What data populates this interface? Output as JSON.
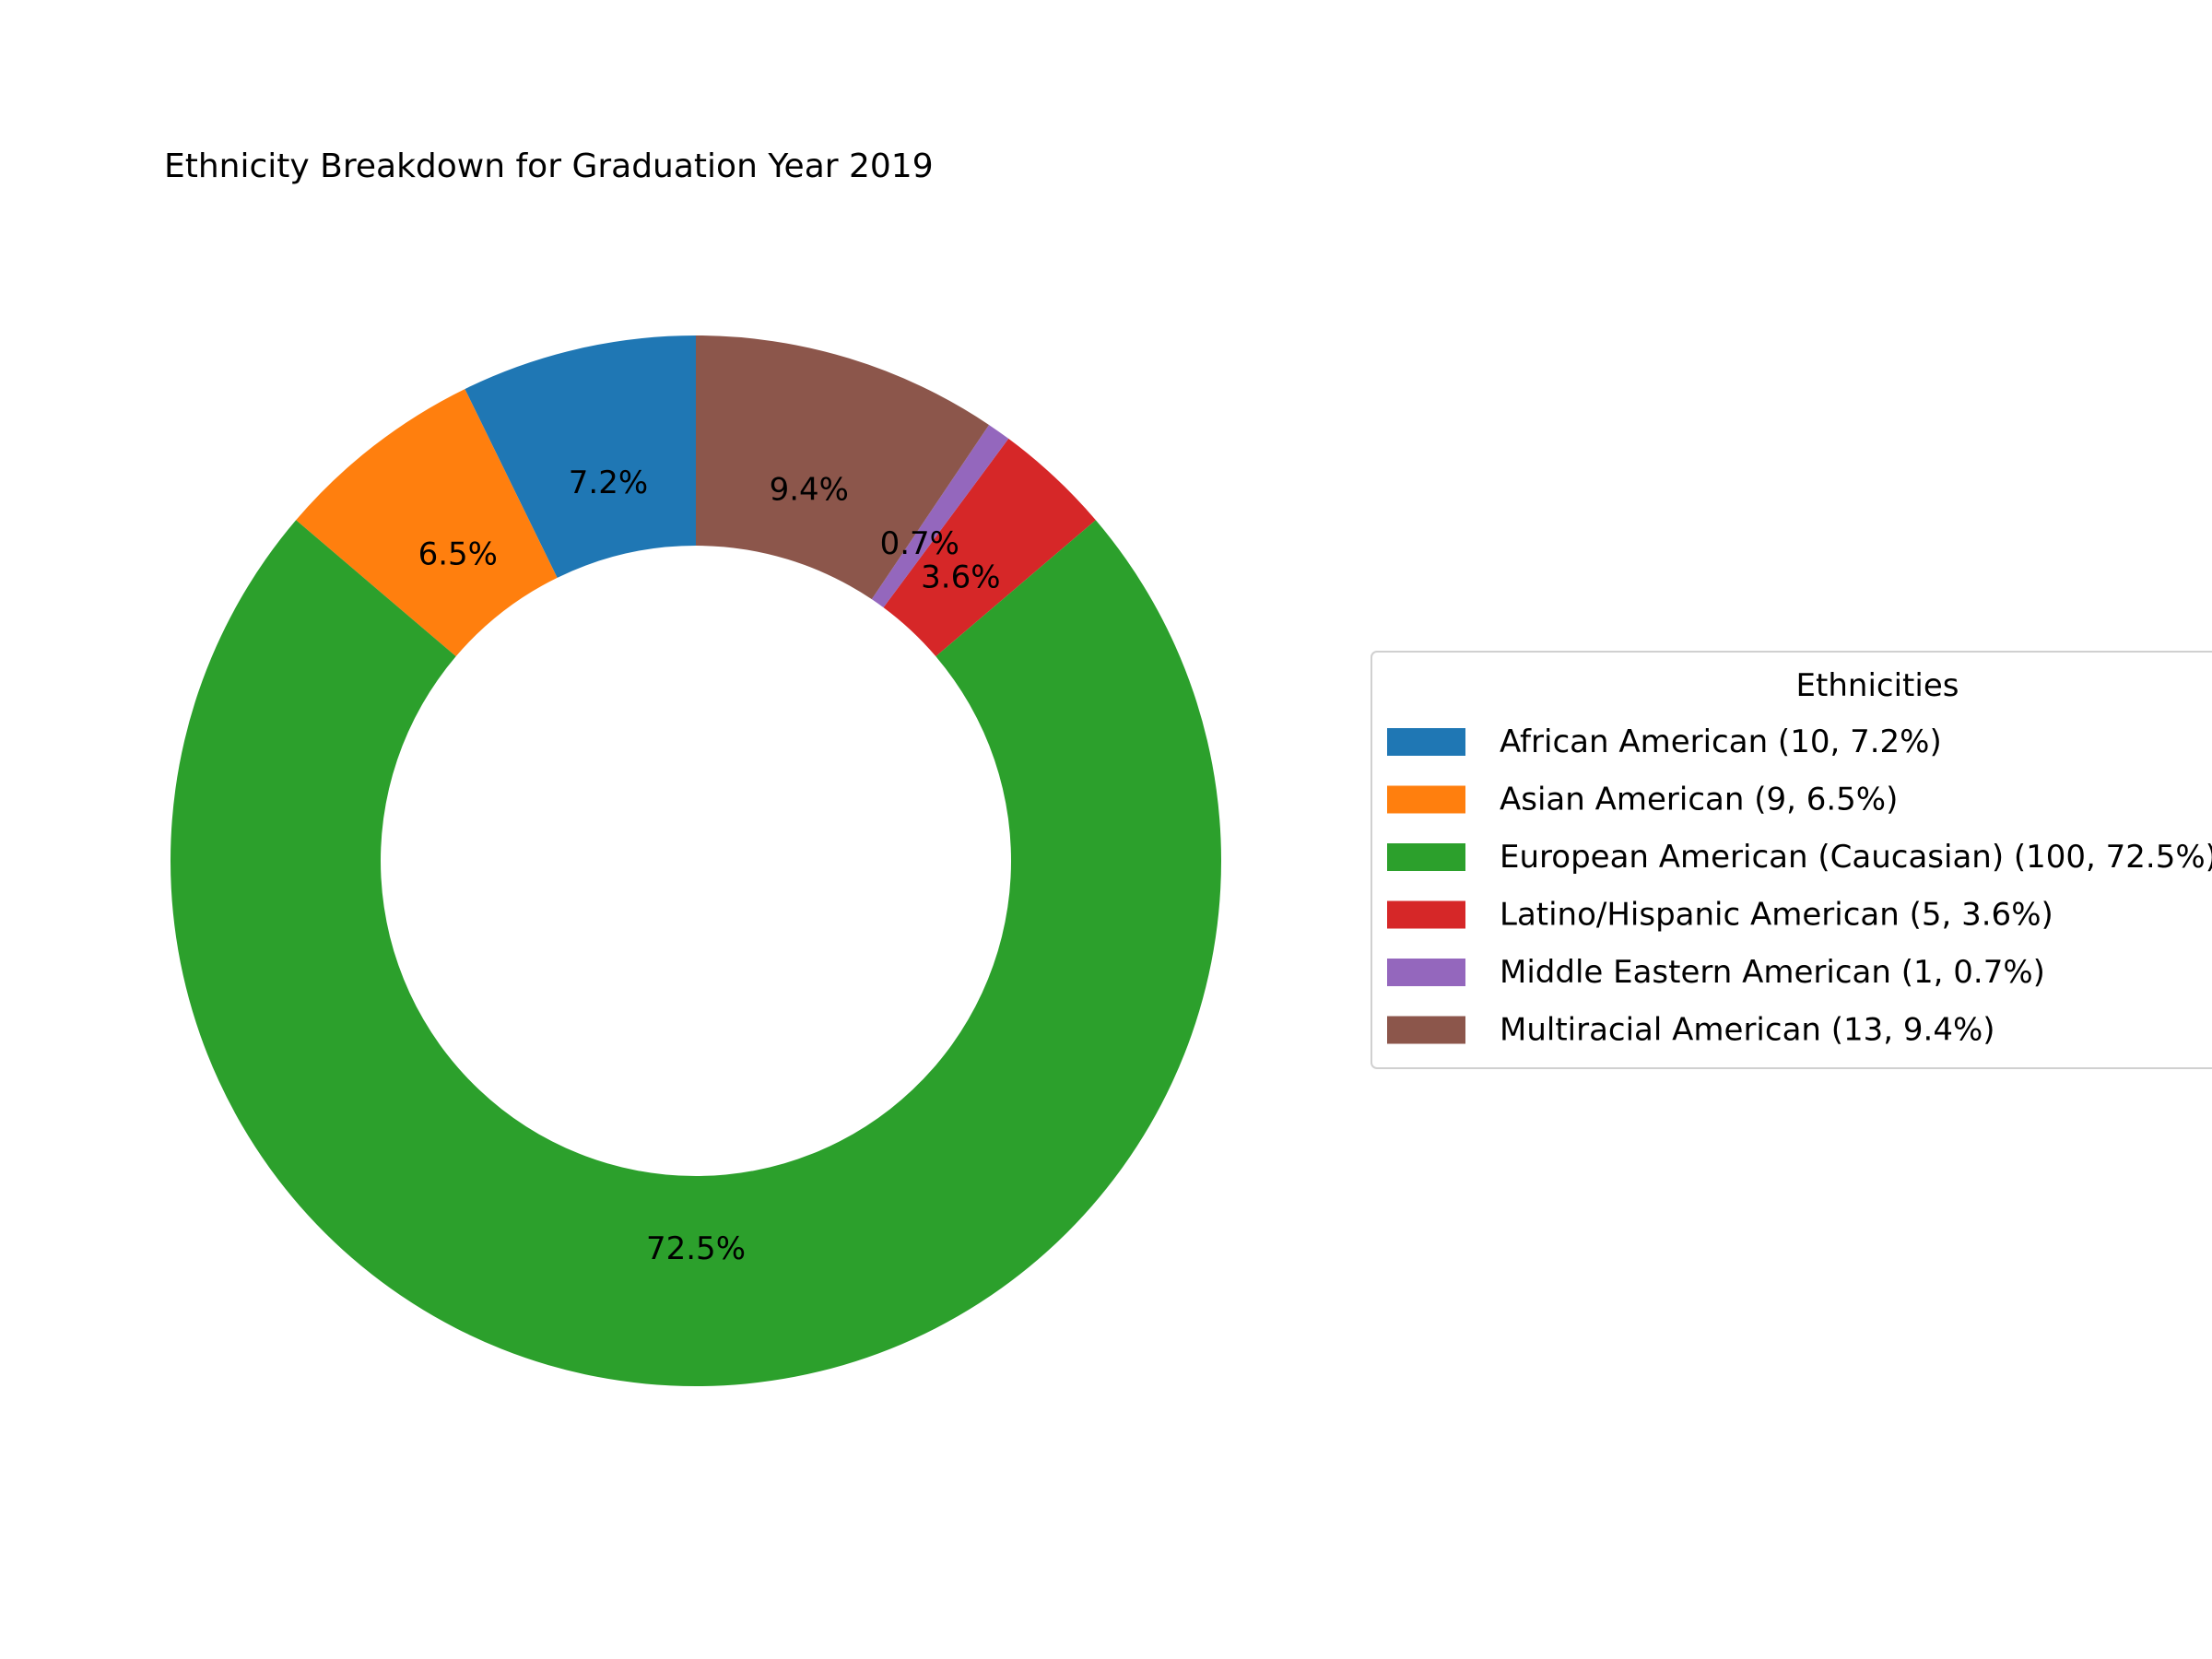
{
  "chart_data": {
    "type": "pie",
    "style": "donut",
    "title": "Ethnicity Breakdown for Graduation Year 2019",
    "legend_title": "Ethnicities",
    "legend_placement": "center-right (partially clipped at right edge)",
    "start_angle_deg": 90,
    "direction": "counterclockwise",
    "slices": [
      {
        "name": "African American",
        "count": 10,
        "pct_label": "7.2%",
        "legend_label": "African American (10, 7.2%)",
        "color": "#1f77b4"
      },
      {
        "name": "Asian American",
        "count": 9,
        "pct_label": "6.5%",
        "legend_label": "Asian American (9, 6.5%)",
        "color": "#ff7f0e"
      },
      {
        "name": "European American (Caucasian)",
        "count": 100,
        "pct_label": "72.5%",
        "legend_label": "European American (Caucasian) (100, 72.5%)",
        "color": "#2ca02c"
      },
      {
        "name": "Latino/Hispanic American",
        "count": 5,
        "pct_label": "3.6%",
        "legend_label": "Latino/Hispanic American (5, 3.6%)",
        "color": "#d62728"
      },
      {
        "name": "Middle Eastern American",
        "count": 1,
        "pct_label": "0.7%",
        "legend_label": "Middle Eastern American (1, 0.7%)",
        "color": "#9467bd"
      },
      {
        "name": "Multiracial American",
        "count": 13,
        "pct_label": "9.4%",
        "legend_label": "Multiracial American (13, 9.4%)",
        "color": "#8c564b"
      }
    ],
    "slice_draw_order": [
      "Latino/Hispanic American",
      "Middle Eastern American",
      "Multiracial American",
      "African American",
      "Asian American",
      "European American (Caucasian)"
    ]
  }
}
